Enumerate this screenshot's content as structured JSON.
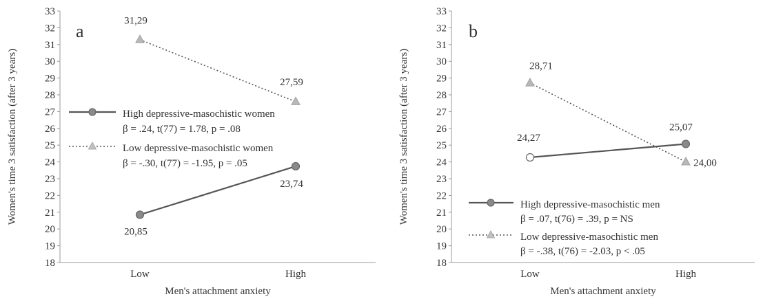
{
  "chart_data": [
    {
      "type": "line",
      "panel_label": "a",
      "xlabel": "Men's attachment anxiety",
      "ylabel": "Women's time 3 satisfaction (after 3 years)",
      "categories": [
        "Low",
        "High"
      ],
      "ylim": [
        18,
        33
      ],
      "yticks": [
        "18",
        "19",
        "20",
        "21",
        "22",
        "23",
        "24",
        "25",
        "26",
        "27",
        "28",
        "29",
        "30",
        "31",
        "32",
        "33"
      ],
      "grid": false,
      "legend_position": "left-middle",
      "series": [
        {
          "name": "High depressive-masochistic women",
          "stat": "β = .24, t(77) = 1.78, p = .08",
          "values": [
            20.85,
            23.74
          ],
          "value_labels": [
            "20,85",
            "23,74"
          ],
          "line_style": "solid",
          "marker": "circle",
          "color": "#555555"
        },
        {
          "name": "Low depressive-masochistic women",
          "stat": "β = -.30, t(77) = -1.95, p = .05",
          "values": [
            31.29,
            27.59
          ],
          "value_labels": [
            "31,29",
            "27,59"
          ],
          "line_style": "dotted",
          "marker": "triangle",
          "color": "#555555"
        }
      ]
    },
    {
      "type": "line",
      "panel_label": "b",
      "xlabel": "Men's attachment anxiety",
      "ylabel": "Women's time 3 satisfaction (after 3 years)",
      "categories": [
        "Low",
        "High"
      ],
      "ylim": [
        18,
        33
      ],
      "yticks": [
        "18",
        "19",
        "20",
        "21",
        "22",
        "23",
        "24",
        "25",
        "26",
        "27",
        "28",
        "29",
        "30",
        "31",
        "32",
        "33"
      ],
      "grid": false,
      "legend_position": "bottom-left",
      "series": [
        {
          "name": "High depressive-masochistic men",
          "stat": "β = .07, t(76) = .39, p = NS",
          "values": [
            24.27,
            25.07
          ],
          "value_labels": [
            "24,27",
            "25,07"
          ],
          "line_style": "solid",
          "marker": "circle",
          "color": "#555555"
        },
        {
          "name": "Low depressive-masochistic men",
          "stat": "β = -.38, t(76) = -2.03, p < .05",
          "values": [
            28.71,
            24.0
          ],
          "value_labels": [
            "28,71",
            "24,00"
          ],
          "line_style": "dotted",
          "marker": "triangle",
          "color": "#555555"
        }
      ]
    }
  ]
}
